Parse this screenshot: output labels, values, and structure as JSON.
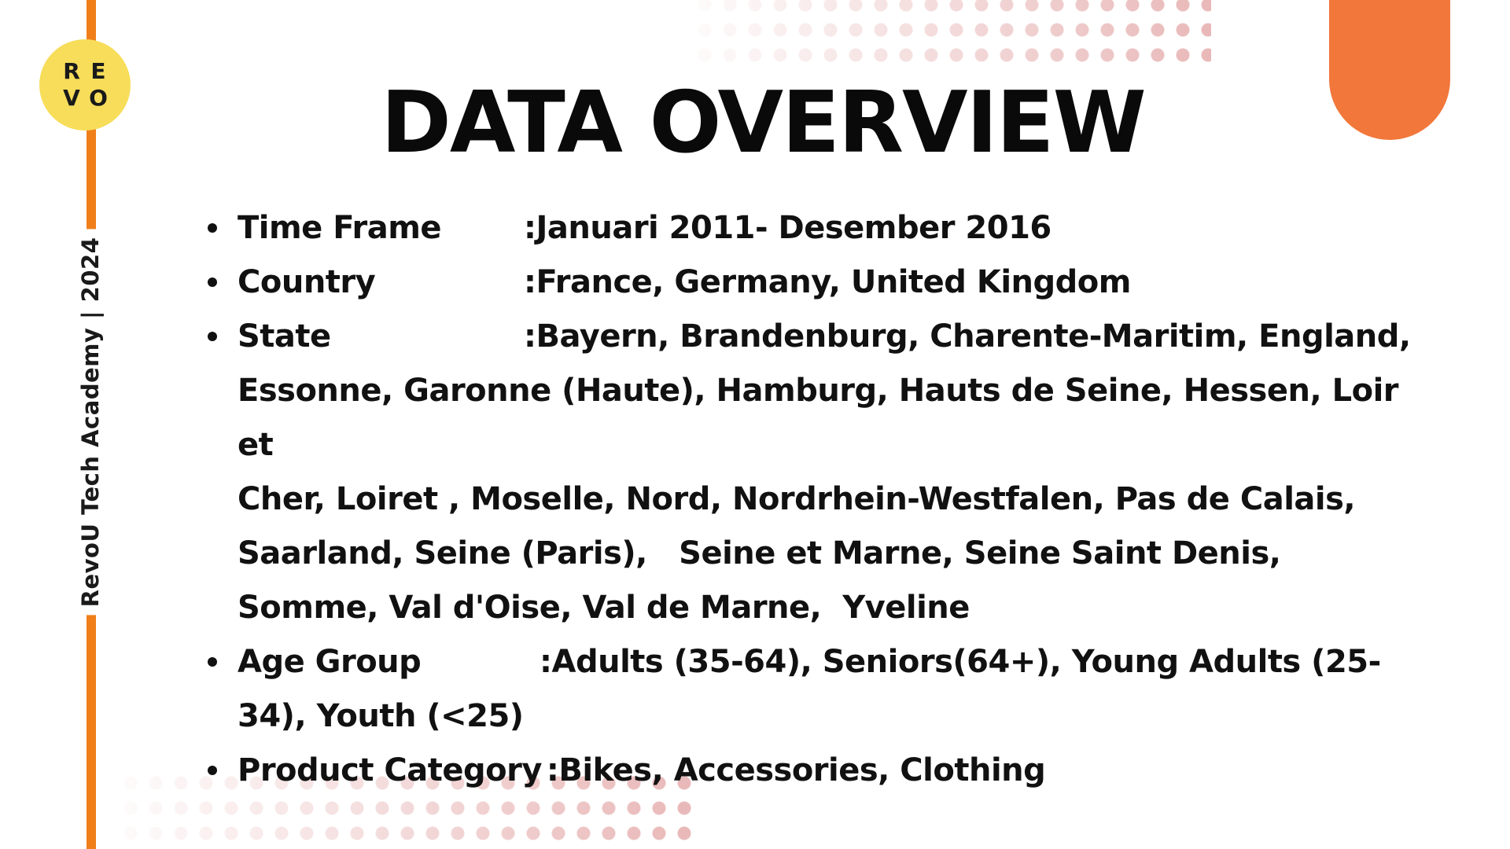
{
  "slide": {
    "title": "DATA OVERVIEW",
    "vertical_caption": "RevoU Tech Academy | 2024",
    "logo": {
      "letters": [
        "R",
        "E",
        "V",
        "O"
      ]
    },
    "colors": {
      "accent_orange": "#f07f1a",
      "shape_orange": "#f2773a",
      "logo_yellow": "#f7dd5a",
      "dot_pink": "#e9b8b8"
    }
  },
  "overview": {
    "items": [
      {
        "label": "Time Frame",
        "separator": ": ",
        "value": "Januari 2011- Desember 2016"
      },
      {
        "label": "Country",
        "separator": ": ",
        "value": "France, Germany, United Kingdom"
      },
      {
        "label": "State",
        "separator": ": ",
        "value_first_line": "Bayern, Brandenburg, Charente-Maritim, England,",
        "value_rest": [
          "Essonne, Garonne (Haute), Hamburg, Hauts de Seine, Hessen, Loir et",
          "Cher, Loiret , Moselle, Nord, Nordrhein-Westfalen, Pas de Calais,",
          "Saarland, Seine (Paris),   Seine et Marne, Seine Saint Denis,",
          "Somme, Val d'Oise, Val de Marne,  Yveline"
        ]
      },
      {
        "label": "Age Group",
        "separator": ": ",
        "value_first_line": "Adults (35-64), Seniors(64+), Young Adults (25-",
        "value_rest": [
          "34), Youth (<25)"
        ]
      },
      {
        "label": "Product Category",
        "separator": ": ",
        "value": "Bikes, Accessories, Clothing"
      }
    ]
  }
}
